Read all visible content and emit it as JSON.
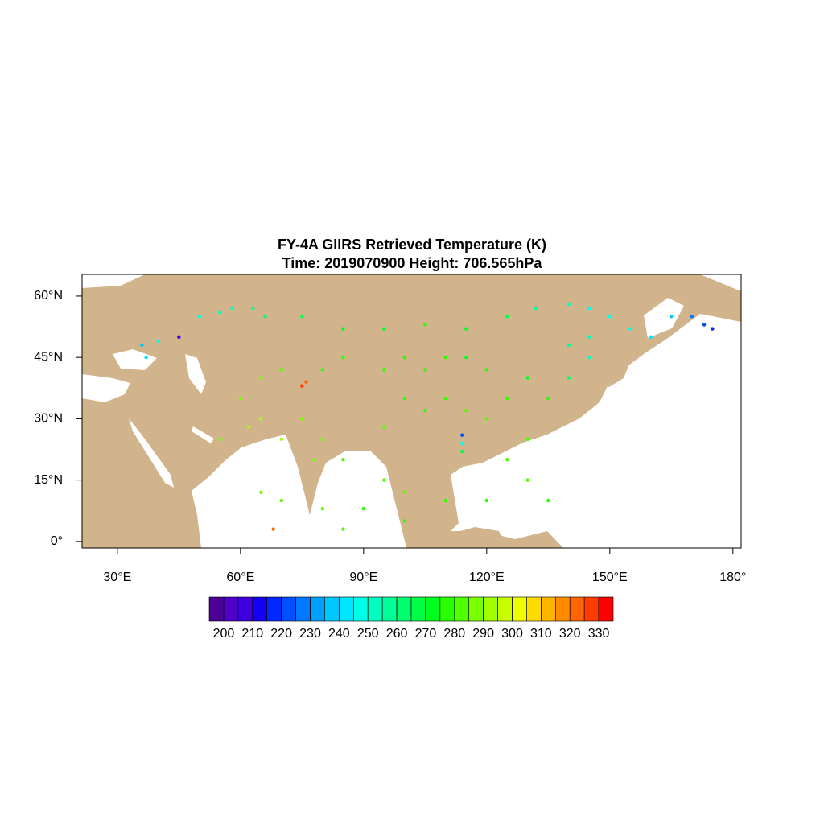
{
  "chart_data": {
    "type": "scatter",
    "title": "FY-4A GIIRS Retrieved Temperature (K)",
    "subtitle": "Time: 2019070900  Height: 706.565hPa",
    "xlim": [
      21.4,
      182
    ],
    "ylim": [
      -1.6,
      65.3
    ],
    "xticks": [
      {
        "value": 30,
        "label": "30°E"
      },
      {
        "value": 60,
        "label": "60°E"
      },
      {
        "value": 90,
        "label": "90°E"
      },
      {
        "value": 120,
        "label": "120°E"
      },
      {
        "value": 150,
        "label": "150°E"
      },
      {
        "value": 180,
        "label": "180°"
      }
    ],
    "yticks": [
      {
        "value": 0,
        "label": "0°"
      },
      {
        "value": 15,
        "label": "15°N"
      },
      {
        "value": 30,
        "label": "30°N"
      },
      {
        "value": 45,
        "label": "45°N"
      },
      {
        "value": 60,
        "label": "60°N"
      }
    ],
    "land_color": "#d2b48c",
    "colorbar": {
      "colors": [
        "#4b0096",
        "#5000c8",
        "#3c00dc",
        "#1400f0",
        "#0028ff",
        "#0050ff",
        "#0078ff",
        "#00a0ff",
        "#00c8ff",
        "#00e6ff",
        "#00ffe6",
        "#00ffbe",
        "#00ff96",
        "#00ff6e",
        "#00ff46",
        "#00ff1e",
        "#28ff00",
        "#50ff00",
        "#78ff00",
        "#a0ff00",
        "#c8ff00",
        "#f0ff00",
        "#ffdc00",
        "#ffb400",
        "#ff8c00",
        "#ff6400",
        "#ff3c00",
        "#ff0000"
      ],
      "ticks": [
        200,
        210,
        220,
        230,
        240,
        250,
        260,
        270,
        280,
        290,
        300,
        310,
        320,
        330
      ]
    },
    "lon": [
      50,
      55,
      58,
      63,
      66,
      75,
      85,
      95,
      105,
      115,
      125,
      132,
      140,
      145,
      150,
      155,
      160,
      165,
      170,
      175,
      173,
      145,
      140,
      45,
      100,
      95,
      105,
      110,
      115,
      120,
      85,
      80,
      75,
      76,
      70,
      65,
      60,
      65,
      70,
      62,
      55,
      75,
      80,
      78,
      85,
      95,
      100,
      105,
      110,
      115,
      114,
      114,
      114,
      120,
      125,
      130,
      135,
      130,
      125,
      130,
      135,
      120,
      110,
      100,
      95,
      90,
      80,
      70,
      65,
      68,
      100,
      85,
      140,
      145,
      37,
      36,
      40
    ],
    "lat": [
      55,
      56,
      57,
      57,
      55,
      55,
      52,
      52,
      53,
      52,
      55,
      57,
      58,
      57,
      55,
      52,
      50,
      55,
      55,
      52,
      53,
      50,
      48,
      50,
      45,
      42,
      42,
      45,
      45,
      42,
      45,
      42,
      38,
      39,
      42,
      40,
      35,
      30,
      25,
      28,
      25,
      30,
      25,
      20,
      20,
      28,
      35,
      32,
      35,
      32,
      26,
      24,
      22,
      30,
      35,
      40,
      35,
      25,
      20,
      15,
      10,
      10,
      10,
      12,
      15,
      8,
      8,
      10,
      12,
      3,
      5,
      3,
      40,
      45,
      45,
      48,
      49
    ],
    "values": [
      245,
      250,
      250,
      255,
      260,
      265,
      270,
      270,
      275,
      270,
      265,
      258,
      250,
      248,
      245,
      245,
      242,
      235,
      228,
      218,
      222,
      250,
      258,
      205,
      275,
      275,
      276,
      278,
      272,
      275,
      275,
      278,
      325,
      320,
      280,
      285,
      285,
      290,
      292,
      290,
      285,
      285,
      288,
      285,
      282,
      280,
      278,
      278,
      278,
      280,
      220,
      245,
      265,
      280,
      275,
      272,
      275,
      280,
      282,
      280,
      278,
      278,
      278,
      282,
      280,
      278,
      280,
      282,
      285,
      320,
      278,
      282,
      260,
      252,
      240,
      238,
      245
    ]
  }
}
